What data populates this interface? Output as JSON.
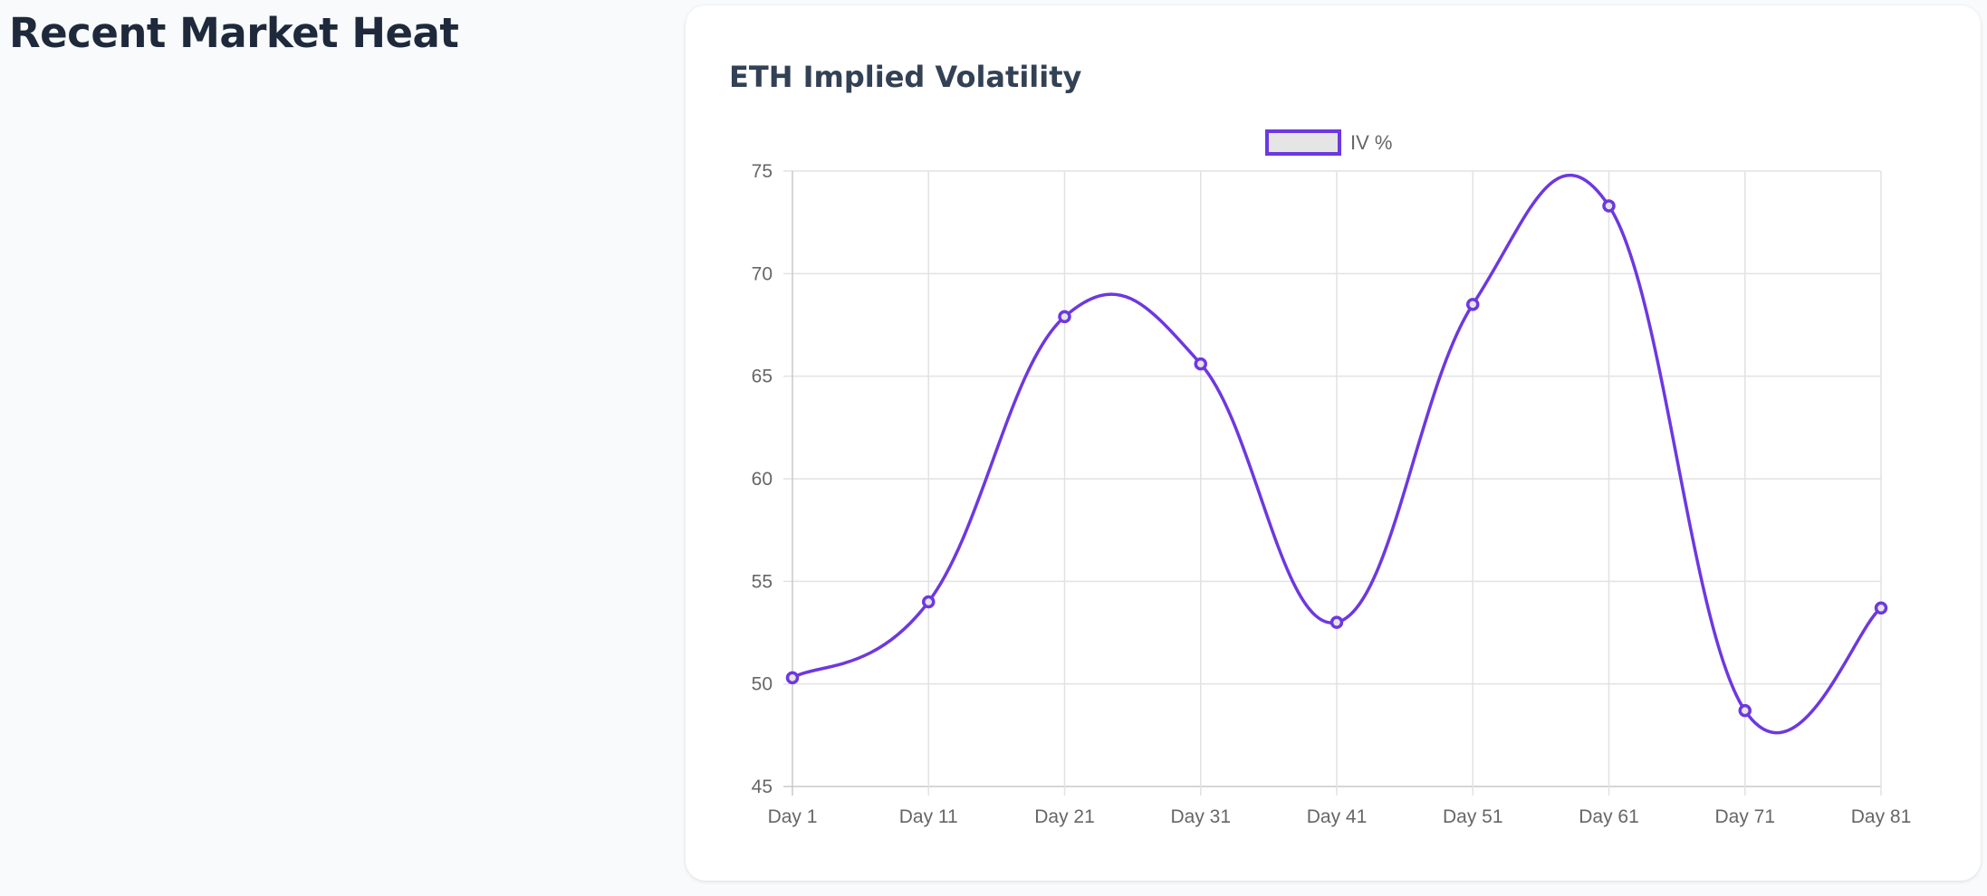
{
  "page": {
    "title": "Recent Market Heat"
  },
  "card": {
    "title": "ETH Implied Volatility"
  },
  "chart_data": {
    "type": "line",
    "title": "ETH Implied Volatility",
    "categories": [
      "Day 1",
      "Day 11",
      "Day 21",
      "Day 31",
      "Day 41",
      "Day 51",
      "Day 61",
      "Day 71",
      "Day 81"
    ],
    "series": [
      {
        "name": "IV %",
        "values": [
          50.3,
          54.0,
          67.9,
          65.6,
          53.0,
          68.5,
          73.3,
          48.7,
          53.7
        ],
        "color": "#6d38e0",
        "fill": "#e5e5e5"
      }
    ],
    "ylim": [
      45,
      75
    ],
    "yticks": [
      "45",
      "50",
      "55",
      "60",
      "65",
      "70",
      "75"
    ],
    "grid": true,
    "legend": "top-center",
    "xlabel": "",
    "ylabel": ""
  }
}
